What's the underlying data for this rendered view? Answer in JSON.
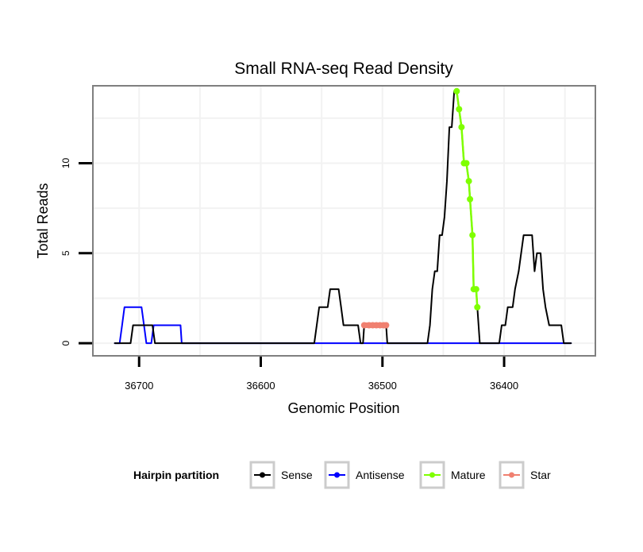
{
  "chart_data": {
    "type": "line",
    "title": "Small RNA-seq Read Density",
    "xlabel": "Genomic Position",
    "ylabel": "Total Reads",
    "xlim": [
      36738,
      36325
    ],
    "ylim": [
      -0.7,
      14.3
    ],
    "x_ticks": [
      36700,
      36600,
      36500,
      36400
    ],
    "y_ticks": [
      0,
      5,
      10
    ],
    "grid": true,
    "legend": {
      "title": "Hairpin partition",
      "position": "bottom",
      "items": [
        {
          "name": "Sense",
          "color": "#000000"
        },
        {
          "name": "Antisense",
          "color": "#0000ff"
        },
        {
          "name": "Mature",
          "color": "#7fff00"
        },
        {
          "name": "Star",
          "color": "#f08070"
        }
      ]
    },
    "series": [
      {
        "name": "Sense",
        "color": "#000000",
        "points": [
          [
            36720,
            0
          ],
          [
            36707,
            0
          ],
          [
            36705,
            1
          ],
          [
            36689,
            1
          ],
          [
            36687,
            0
          ],
          [
            36556,
            0
          ],
          [
            36554,
            1
          ],
          [
            36552,
            2
          ],
          [
            36545,
            2
          ],
          [
            36543,
            3
          ],
          [
            36536,
            3
          ],
          [
            36534,
            2
          ],
          [
            36532,
            1
          ],
          [
            36520,
            1
          ],
          [
            36518,
            0
          ],
          [
            36516,
            0
          ],
          [
            36515,
            1
          ],
          [
            36497,
            1
          ],
          [
            36496,
            0
          ],
          [
            36463,
            0
          ],
          [
            36461,
            1
          ],
          [
            36459,
            3
          ],
          [
            36457,
            4
          ],
          [
            36455,
            4
          ],
          [
            36453,
            6
          ],
          [
            36451,
            6
          ],
          [
            36449,
            7
          ],
          [
            36447,
            9
          ],
          [
            36445,
            12
          ],
          [
            36443,
            12
          ],
          [
            36441,
            14
          ],
          [
            36439,
            14
          ],
          [
            36437,
            13
          ],
          [
            36435,
            12
          ],
          [
            36433,
            10
          ],
          [
            36431,
            10
          ],
          [
            36429,
            9
          ],
          [
            36428,
            8
          ],
          [
            36426,
            6
          ],
          [
            36425,
            3
          ],
          [
            36423,
            3
          ],
          [
            36422,
            2
          ],
          [
            36420,
            0
          ],
          [
            36404,
            0
          ],
          [
            36402,
            1
          ],
          [
            36399,
            1
          ],
          [
            36397,
            2
          ],
          [
            36393,
            2
          ],
          [
            36391,
            3
          ],
          [
            36388,
            4
          ],
          [
            36386,
            5
          ],
          [
            36384,
            6
          ],
          [
            36377,
            6
          ],
          [
            36375,
            4
          ],
          [
            36373,
            5
          ],
          [
            36370,
            5
          ],
          [
            36368,
            3
          ],
          [
            36366,
            2
          ],
          [
            36363,
            1
          ],
          [
            36353,
            1
          ],
          [
            36351,
            0
          ],
          [
            36345,
            0
          ]
        ]
      },
      {
        "name": "Antisense",
        "color": "#0000ff",
        "points": [
          [
            36720,
            0
          ],
          [
            36716,
            0
          ],
          [
            36714,
            1
          ],
          [
            36712,
            2
          ],
          [
            36698,
            2
          ],
          [
            36696,
            1
          ],
          [
            36694,
            0
          ],
          [
            36690,
            0
          ],
          [
            36688,
            1
          ],
          [
            36666,
            1
          ],
          [
            36665,
            0
          ],
          [
            36345,
            0
          ]
        ]
      },
      {
        "name": "Mature",
        "color": "#7fff00",
        "points": [
          [
            36439,
            14
          ],
          [
            36437,
            13
          ],
          [
            36435,
            12
          ],
          [
            36433,
            10
          ],
          [
            36431,
            10
          ],
          [
            36429,
            9
          ],
          [
            36428,
            8
          ],
          [
            36426,
            6
          ],
          [
            36425,
            3
          ],
          [
            36423,
            3
          ],
          [
            36422,
            2
          ]
        ]
      },
      {
        "name": "Star",
        "color": "#f08070",
        "points": [
          [
            36515,
            1
          ],
          [
            36511,
            1
          ],
          [
            36508,
            1
          ],
          [
            36505,
            1
          ],
          [
            36502,
            1
          ],
          [
            36499,
            1
          ],
          [
            36497,
            1
          ]
        ]
      }
    ]
  }
}
